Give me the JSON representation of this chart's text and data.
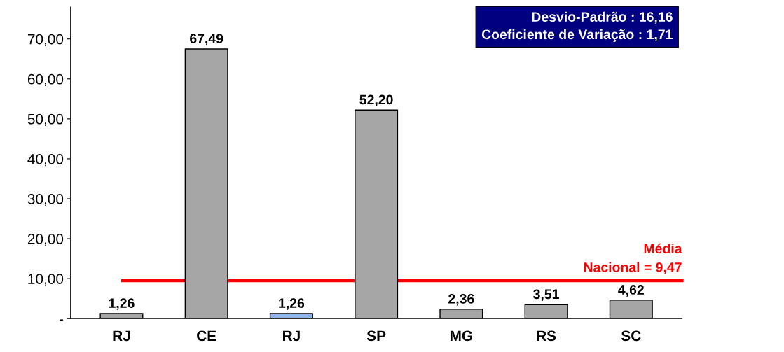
{
  "chart_data": {
    "type": "bar",
    "categories": [
      "RJ",
      "CE",
      "RJ",
      "SP",
      "MG",
      "RS",
      "SC"
    ],
    "values": [
      1.26,
      67.49,
      1.26,
      52.2,
      2.36,
      3.51,
      4.62
    ],
    "colors": [
      "#a6a6a6",
      "#a6a6a6",
      "#8fb4e8",
      "#a6a6a6",
      "#a6a6a6",
      "#a6a6a6",
      "#a6a6a6"
    ],
    "value_labels": [
      "1,26",
      "67,49",
      "1,26",
      "52,20",
      "2,36",
      "3,51",
      "4,62"
    ],
    "ylim": [
      0,
      78
    ],
    "yticks": [
      {
        "value": 0,
        "label": "-"
      },
      {
        "value": 10,
        "label": "10,00"
      },
      {
        "value": 20,
        "label": "20,00"
      },
      {
        "value": 30,
        "label": "30,00"
      },
      {
        "value": 40,
        "label": "40,00"
      },
      {
        "value": 50,
        "label": "50,00"
      },
      {
        "value": 60,
        "label": "60,00"
      },
      {
        "value": 70,
        "label": "70,00"
      }
    ],
    "ref_lines": [
      {
        "axis": "y",
        "value": 9.47,
        "label": "Média\nNacional = 9,47",
        "color": "#ff0000"
      }
    ],
    "annotations": [
      "Desvio-Padrão : 16,16\nCoeficiente de Variação : 1,71"
    ],
    "grid": false,
    "legend": false
  }
}
